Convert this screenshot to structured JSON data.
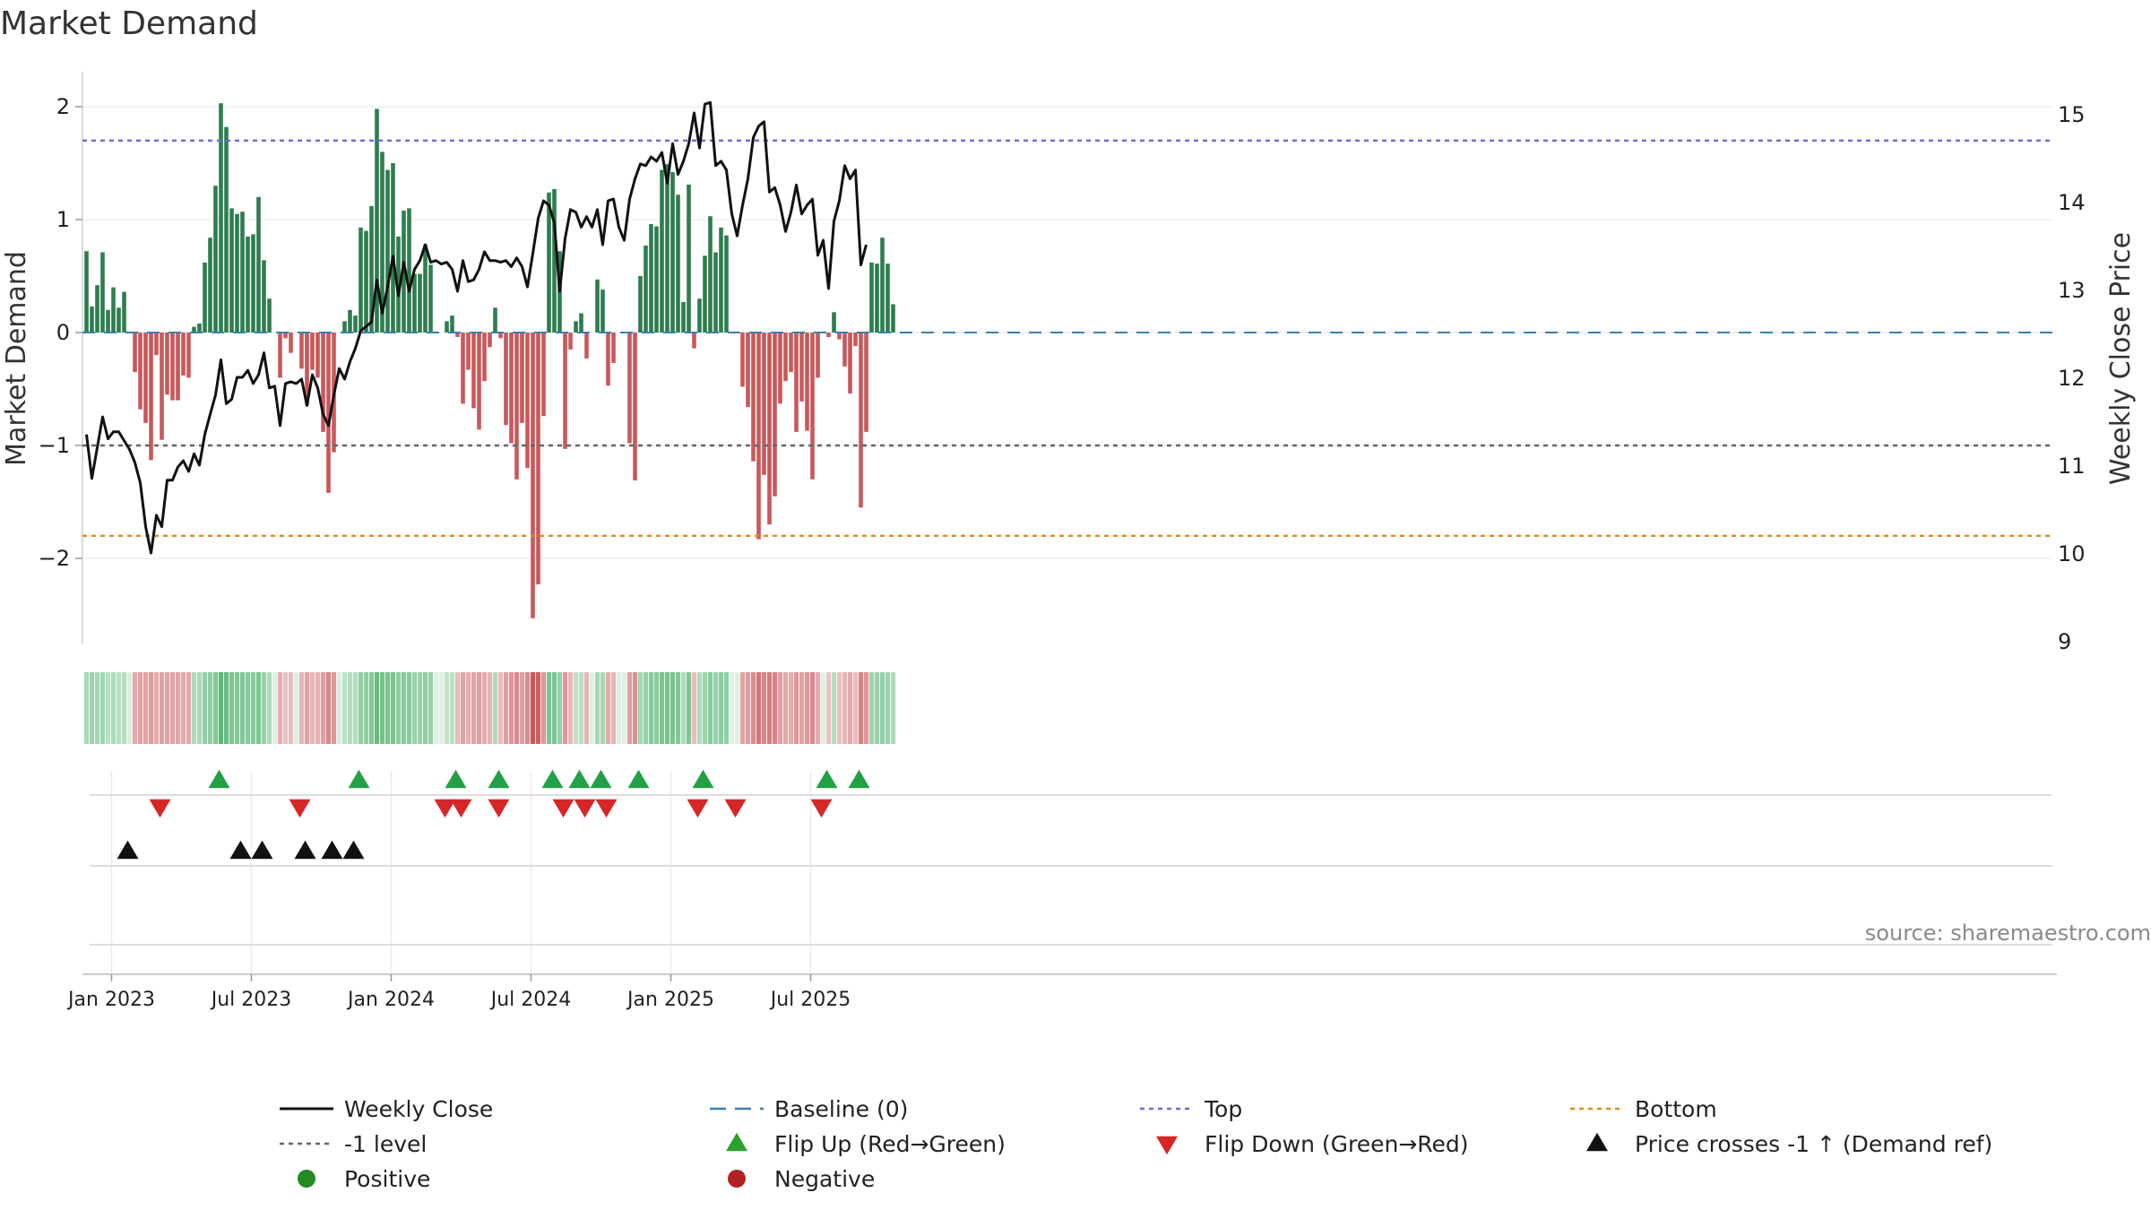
{
  "chart_data": {
    "type": "bar",
    "title": "Market Demand",
    "ylabel_left": "Market Demand",
    "ylabel_right": "Weekly Close Price",
    "ylim_left": [
      -2.8,
      2.2
    ],
    "ylim_right": [
      9,
      15.5
    ],
    "yticks_left": [
      {
        "v": 2,
        "label": "2"
      },
      {
        "v": 1,
        "label": "1"
      },
      {
        "v": 0,
        "label": "0"
      },
      {
        "v": -1,
        "label": "−1"
      },
      {
        "v": -2,
        "label": "−2"
      }
    ],
    "yticks_right": [
      {
        "v": 15,
        "label": "15"
      },
      {
        "v": 14,
        "label": "14"
      },
      {
        "v": 13,
        "label": "13"
      },
      {
        "v": 12,
        "label": "12"
      },
      {
        "v": 11,
        "label": "11"
      },
      {
        "v": 10,
        "label": "10"
      },
      {
        "v": 9,
        "label": "9"
      }
    ],
    "xticks": [
      {
        "week": 1,
        "label": "Jan 2023"
      },
      {
        "week": 27,
        "label": "Jul 2023"
      },
      {
        "week": 53,
        "label": "Jan 2024"
      },
      {
        "week": 79,
        "label": "Jul 2024"
      },
      {
        "week": 105,
        "label": "Jan 2025"
      },
      {
        "week": 131,
        "label": "Jul 2025"
      }
    ],
    "reference_lines": {
      "top": 1.7,
      "bottom": -1.8,
      "level": -1,
      "baseline": 0
    },
    "source": "source: sharemaestro.com",
    "demand": [
      0.72,
      0.23,
      0.42,
      0.71,
      0.2,
      0.4,
      0.22,
      0.36,
      0,
      -0.35,
      -0.68,
      -0.8,
      -1.13,
      -0.2,
      -0.95,
      -0.55,
      -0.6,
      -0.6,
      -0.38,
      -0.4,
      0.05,
      0.08,
      0.62,
      0.84,
      1.3,
      2.03,
      1.82,
      1.1,
      1.05,
      1.07,
      0.85,
      0.87,
      1.2,
      0.64,
      0.3,
      0,
      -0.4,
      -0.05,
      -0.18,
      0,
      -0.32,
      -0.64,
      -0.33,
      -0.4,
      -0.88,
      -1.42,
      -1.06,
      0,
      0.1,
      0.2,
      0.15,
      0.93,
      0.9,
      1.12,
      1.98,
      1.6,
      1.44,
      1.5,
      0.85,
      1.08,
      1.1,
      0.52,
      0.52,
      0.78,
      0.6,
      0,
      0,
      0.1,
      0.15,
      -0.04,
      -0.63,
      -0.33,
      -0.67,
      -0.86,
      -0.43,
      -0.13,
      0.22,
      -0.05,
      -0.82,
      -0.98,
      -1.3,
      -0.8,
      -1.2,
      -2.53,
      -2.23,
      -0.74,
      1.24,
      1.27,
      0.72,
      -1.03,
      -0.15,
      0.1,
      0.17,
      -0.23,
      0,
      0.47,
      0.38,
      -0.47,
      -0.27,
      0,
      0,
      -0.98,
      -1.31,
      0.5,
      0.77,
      0.96,
      0.94,
      1.44,
      1.49,
      1.42,
      1.22,
      0.27,
      1.31,
      -0.14,
      0.3,
      0.68,
      1.03,
      0.71,
      0.93,
      0.86,
      0,
      0,
      -0.48,
      -0.66,
      -1.14,
      -1.83,
      -1.26,
      -1.7,
      -1.45,
      -0.63,
      -0.43,
      -0.35,
      -0.88,
      -0.61,
      -0.87,
      -1.3,
      -0.4,
      0,
      -0.04,
      0.18,
      -0.06,
      -0.3,
      -0.54,
      -0.12,
      -1.55,
      -0.88,
      0.62,
      0.61,
      0.84,
      0.61,
      0.25
    ],
    "price": [
      11.35,
      10.85,
      11.2,
      11.55,
      11.3,
      11.38,
      11.38,
      11.28,
      11.18,
      11.03,
      10.8,
      10.3,
      10,
      10.43,
      10.3,
      10.83,
      10.83,
      10.98,
      11.05,
      10.93,
      11.13,
      11.0,
      11.35,
      11.58,
      11.8,
      12.2,
      11.7,
      11.75,
      12.0,
      12.0,
      12.08,
      11.93,
      12.03,
      12.28,
      11.88,
      11.9,
      11.45,
      11.93,
      11.95,
      11.93,
      11.98,
      11.68,
      12.03,
      11.88,
      11.58,
      11.45,
      11.8,
      12.1,
      11.98,
      12.18,
      12.33,
      12.53,
      12.58,
      12.63,
      13.11,
      12.73,
      13.03,
      13.38,
      12.93,
      13.31,
      12.98,
      13.23,
      13.33,
      13.51,
      13.31,
      13.33,
      13.29,
      13.31,
      13.23,
      12.98,
      13.33,
      13.09,
      13.11,
      13.23,
      13.43,
      13.33,
      13.33,
      13.31,
      13.33,
      13.26,
      13.36,
      13.26,
      13.03,
      13.41,
      13.81,
      14.01,
      13.96,
      13.76,
      12.98,
      13.58,
      13.91,
      13.88,
      13.71,
      13.83,
      13.71,
      13.91,
      13.51,
      14.01,
      14.03,
      13.71,
      13.56,
      14.03,
      14.26,
      14.43,
      14.41,
      14.51,
      14.46,
      14.56,
      14.21,
      14.66,
      14.31,
      14.46,
      14.66,
      15.01,
      14.61,
      15.11,
      15.13,
      14.41,
      14.46,
      14.36,
      13.86,
      13.61,
      13.96,
      14.26,
      14.73,
      14.86,
      14.91,
      14.11,
      14.16,
      13.96,
      13.66,
      13.88,
      14.19,
      13.86,
      13.96,
      14.03,
      13.39,
      13.56,
      13.01,
      13.78,
      14.01,
      14.41,
      14.26,
      14.36,
      13.28,
      13.51
    ],
    "strip_intensity": [
      0.48,
      0.55,
      0.5,
      0.52,
      0.4,
      0.45,
      0.4,
      0.42,
      0.4,
      0.52,
      0.55,
      0.55,
      0.6,
      0.5,
      0.56,
      0.55,
      0.55,
      0.54,
      0.52,
      0.52,
      0.45,
      0.48,
      0.6,
      0.62,
      0.7,
      0.9,
      0.85,
      0.72,
      0.7,
      0.7,
      0.66,
      0.66,
      0.72,
      0.58,
      0.45,
      0.35,
      0.48,
      0.38,
      0.4,
      0.38,
      0.45,
      0.55,
      0.45,
      0.46,
      0.58,
      0.72,
      0.62,
      0.38,
      0.38,
      0.42,
      0.42,
      0.62,
      0.62,
      0.68,
      0.85,
      0.78,
      0.74,
      0.75,
      0.62,
      0.66,
      0.66,
      0.56,
      0.56,
      0.62,
      0.58,
      0.35,
      0.35,
      0.36,
      0.38,
      0.4,
      0.55,
      0.48,
      0.55,
      0.58,
      0.5,
      0.45,
      0.45,
      0.4,
      0.58,
      0.62,
      0.7,
      0.58,
      0.68,
      1.0,
      0.95,
      0.62,
      0.72,
      0.72,
      0.6,
      0.62,
      0.42,
      0.38,
      0.4,
      0.45,
      0.35,
      0.5,
      0.5,
      0.5,
      0.45,
      0.35,
      0.35,
      0.58,
      0.66,
      0.52,
      0.6,
      0.66,
      0.66,
      0.74,
      0.75,
      0.74,
      0.7,
      0.45,
      0.72,
      0.4,
      0.45,
      0.55,
      0.66,
      0.58,
      0.64,
      0.62,
      0.35,
      0.35,
      0.55,
      0.58,
      0.68,
      0.82,
      0.72,
      0.78,
      0.74,
      0.58,
      0.52,
      0.5,
      0.62,
      0.56,
      0.62,
      0.7,
      0.5,
      0.35,
      0.36,
      0.42,
      0.38,
      0.45,
      0.52,
      0.4,
      0.75,
      0.62,
      0.56,
      0.56,
      0.6,
      0.56,
      0.45
    ],
    "flip_up_weeks": [
      21,
      47,
      65,
      73,
      83,
      88,
      92,
      99,
      111,
      134,
      140
    ],
    "flip_down_weeks": [
      10,
      36,
      63,
      66,
      73,
      85,
      89,
      93,
      110,
      117,
      133
    ],
    "price_cross_weeks": [
      4,
      25,
      29,
      37,
      42,
      46
    ],
    "legend": [
      {
        "label": "Weekly Close",
        "marker": "line",
        "color": "#111111"
      },
      {
        "label": "Baseline (0)",
        "marker": "dash",
        "color": "#3a7fb0"
      },
      {
        "label": "Top",
        "marker": "dot-line",
        "color": "#6b6bd6"
      },
      {
        "label": "Bottom",
        "marker": "dot-line",
        "color": "#e08a1e"
      },
      {
        "label": "-1 level",
        "marker": "dot-line",
        "color": "#666666"
      },
      {
        "label": "Flip Up (Red→Green)",
        "marker": "up-triangle",
        "color": "#2ca02c"
      },
      {
        "label": "Flip Down (Green→Red)",
        "marker": "down-triangle",
        "color": "#d62728"
      },
      {
        "label": "Price crosses -1 ↑ (Demand ref)",
        "marker": "up-triangle",
        "color": "#111111"
      },
      {
        "label": "Positive",
        "marker": "circle",
        "color": "#228b22"
      },
      {
        "label": "Negative",
        "marker": "circle",
        "color": "#b22222"
      }
    ],
    "colors": {
      "positive_bar": "#2e7d4f",
      "negative_bar": "#c9585b",
      "price_line": "#111111",
      "baseline": "#3a7fb0",
      "top": "#6b6bd6",
      "bottom": "#e08a1e",
      "level": "#666666",
      "flip_up": "#22a046",
      "flip_down": "#d62728",
      "price_cross": "#111111"
    }
  }
}
